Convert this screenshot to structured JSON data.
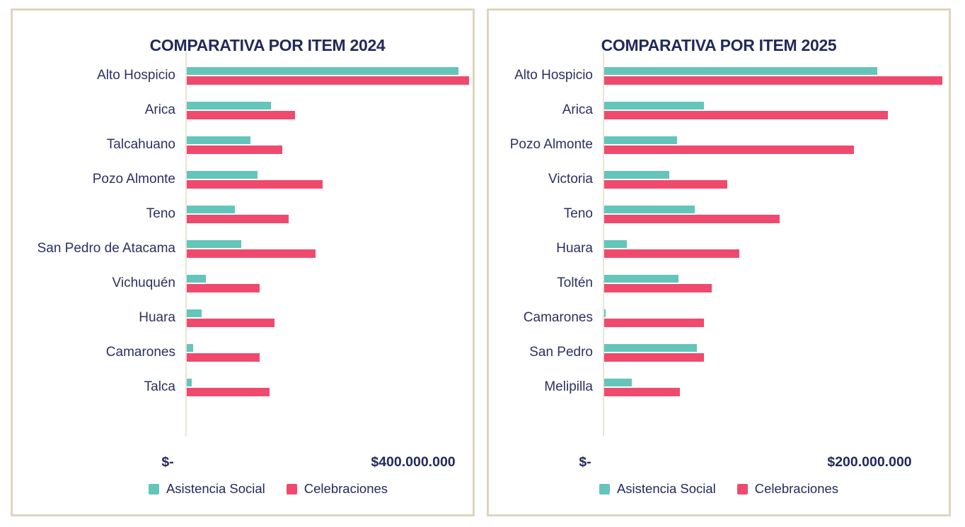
{
  "colors": {
    "asistencia_social": "#64c5ba",
    "celebraciones": "#ef4a6e",
    "title_text": "#222a5a",
    "label_text": "#2a3161",
    "panel_border": "#ddd5be",
    "axis_line": "#eae4d2",
    "background": "#ffffff"
  },
  "chart_data": [
    {
      "type": "bar",
      "orientation": "horizontal",
      "title": "COMPARATIVA POR ITEM 2024",
      "categories": [
        "Alto Hospicio",
        "Arica",
        "Talcahuano",
        "Pozo Almonte",
        "Teno",
        "San Pedro de Atacama",
        "Vichuquén",
        "Huara",
        "Camarones",
        "Talca"
      ],
      "series": [
        {
          "name": "Asistencia Social",
          "color": "#64c5ba",
          "values": [
            480000000,
            149000000,
            113000000,
            125000000,
            85000000,
            96000000,
            34000000,
            26000000,
            11000000,
            9000000
          ]
        },
        {
          "name": "Celebraciones",
          "color": "#ef4a6e",
          "values": [
            499000000,
            191000000,
            169000000,
            240000000,
            180000000,
            228000000,
            129000000,
            155000000,
            129000000,
            146000000
          ]
        }
      ],
      "xticks": [
        "$-",
        "$400.000.000"
      ],
      "xlim": [
        0,
        500000000
      ],
      "grid": false,
      "legend_position": "bottom"
    },
    {
      "type": "bar",
      "orientation": "horizontal",
      "title": "COMPARATIVA POR ITEM 2025",
      "categories": [
        "Alto Hospicio",
        "Arica",
        "Pozo Almonte",
        "Victoria",
        "Teno",
        "Huara",
        "Toltén",
        "Camarones",
        "San Pedro",
        "Melipilla"
      ],
      "series": [
        {
          "name": "Asistencia Social",
          "color": "#64c5ba",
          "values": [
            206000000,
            75000000,
            55000000,
            49000000,
            68000000,
            17000000,
            56000000,
            1000000,
            70000000,
            21000000
          ]
        },
        {
          "name": "Celebraciones",
          "color": "#ef4a6e",
          "values": [
            255000000,
            214000000,
            188000000,
            93000000,
            132000000,
            102000000,
            81000000,
            75000000,
            75000000,
            57000000
          ]
        }
      ],
      "xticks": [
        "$-",
        "$200.000.000"
      ],
      "xlim": [
        0,
        256000000
      ],
      "grid": false,
      "legend_position": "bottom"
    }
  ]
}
